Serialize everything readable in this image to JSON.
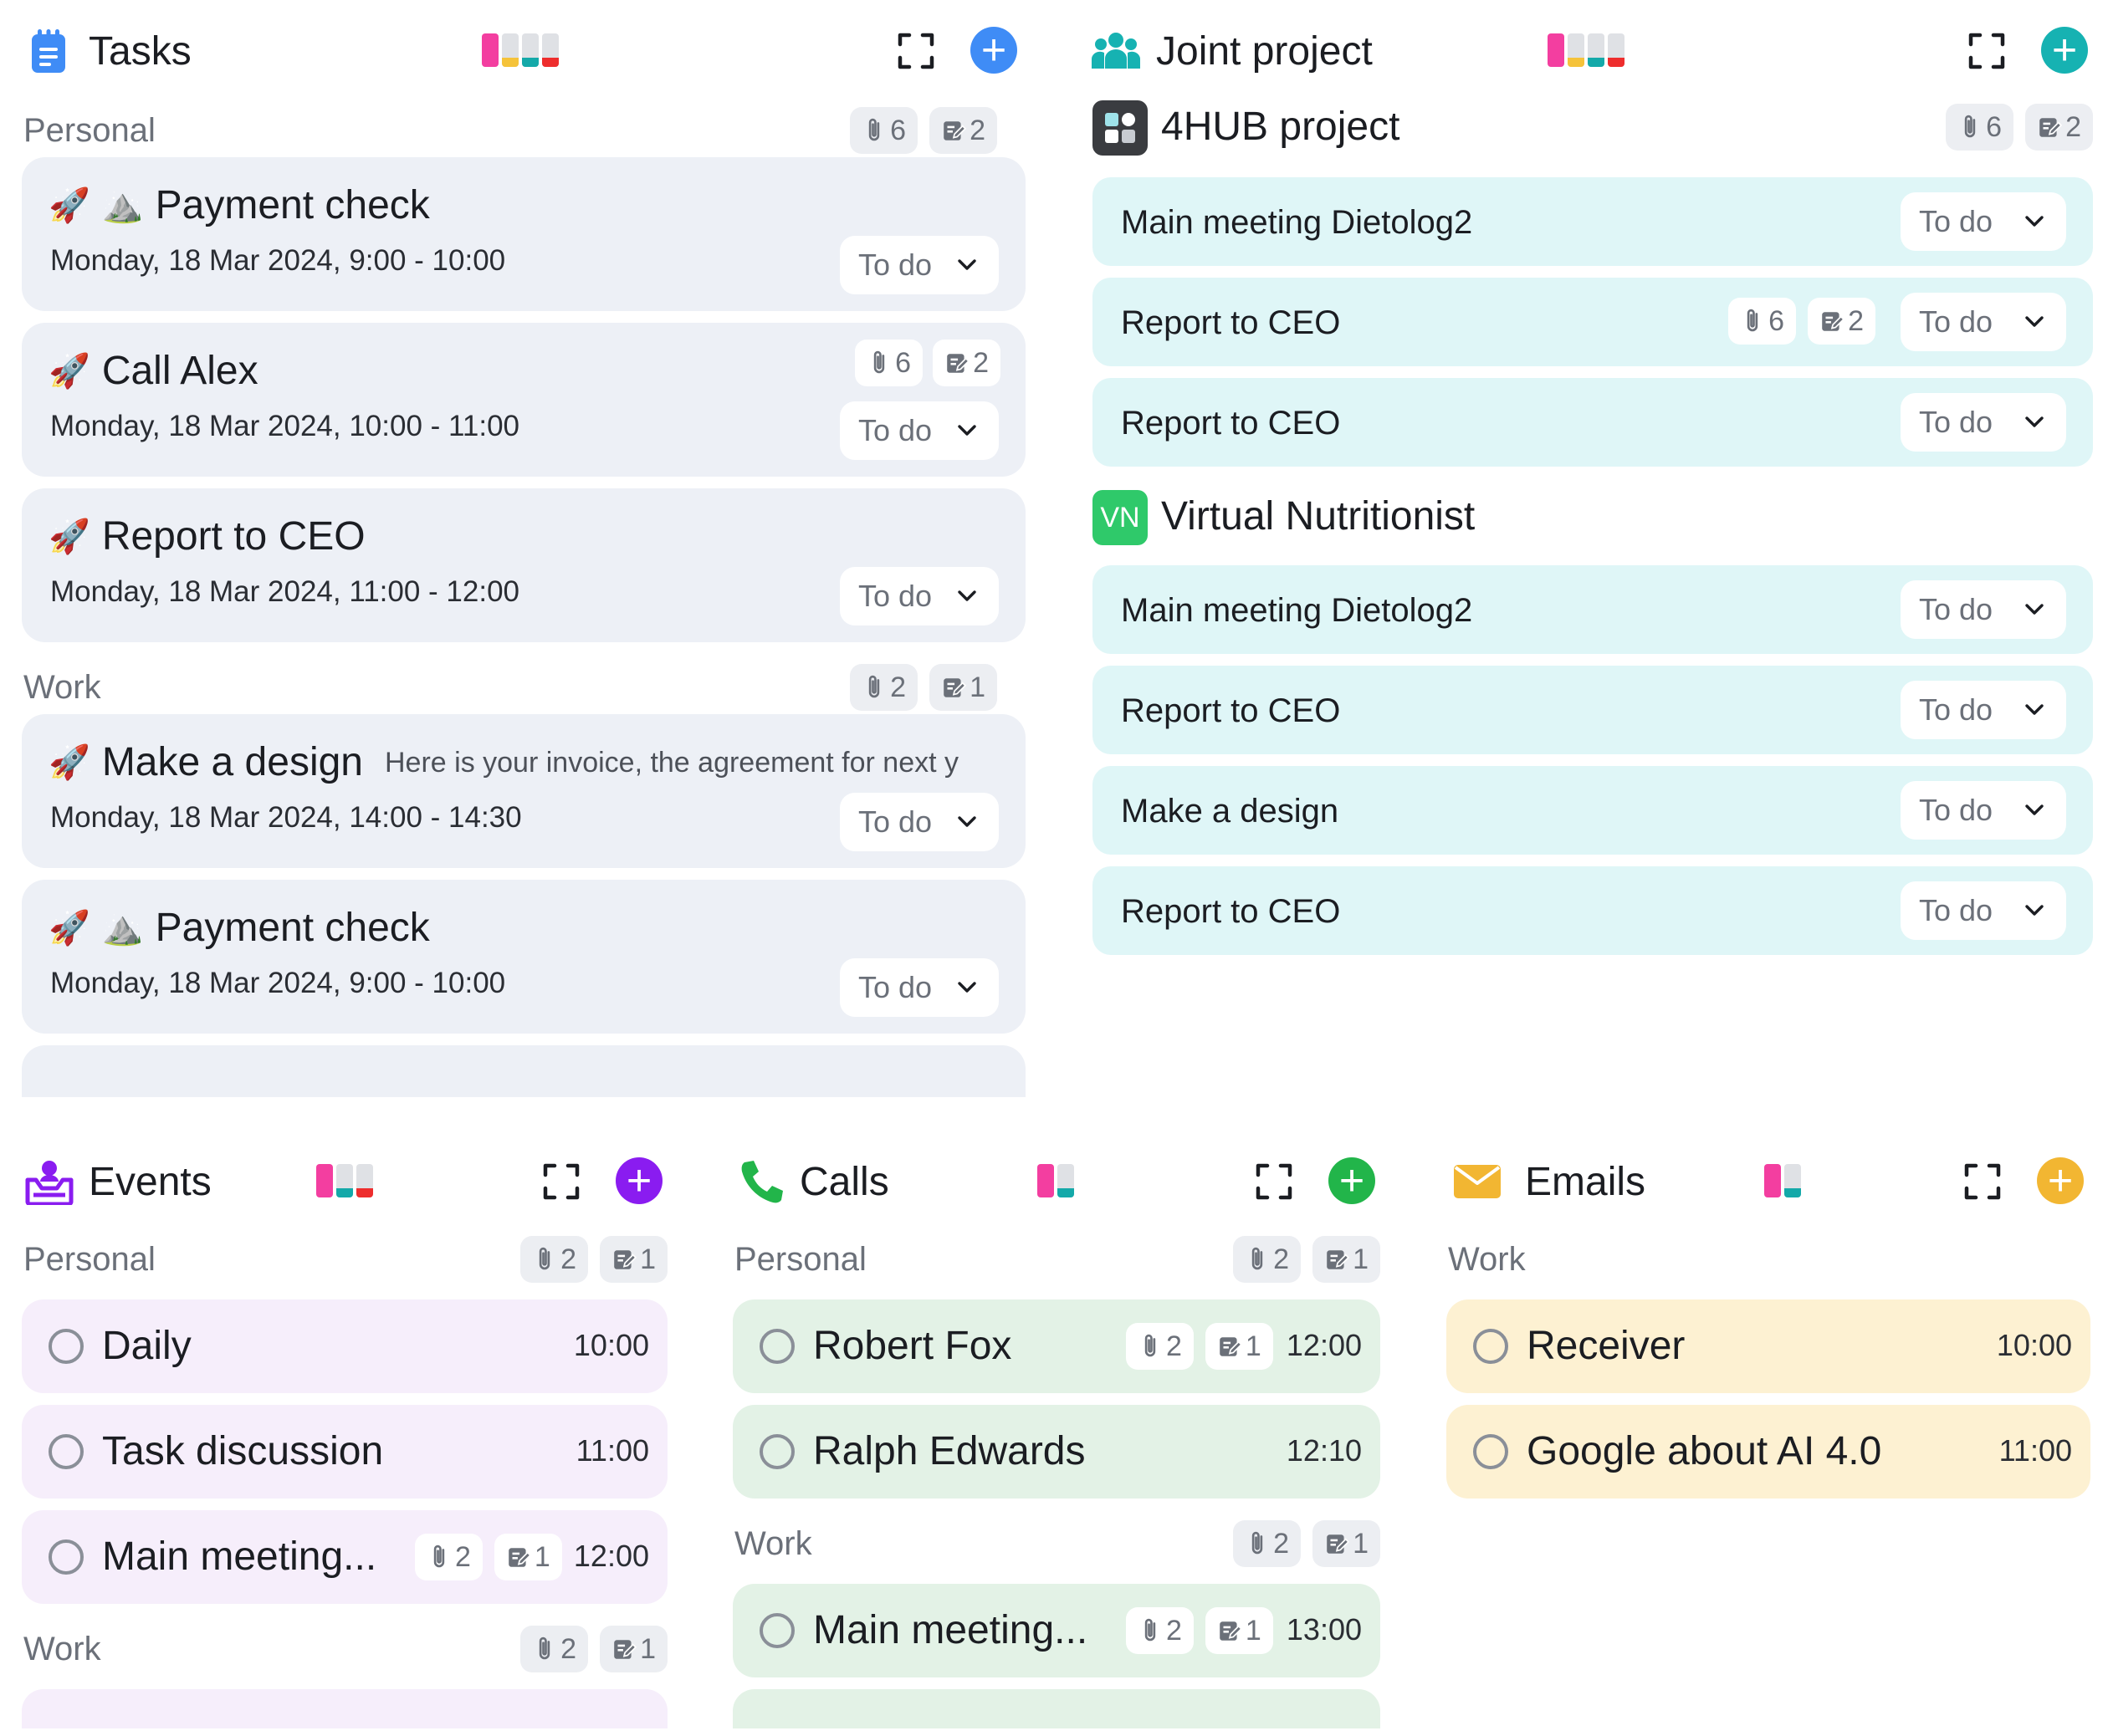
{
  "colors": {
    "tasks_accent": "#3f8cf6",
    "joint_accent": "#16b2b2",
    "events_accent": "#8a1cf0",
    "calls_accent": "#22b54a",
    "emails_accent": "#f2b632",
    "bar_pink": "#f33ea0",
    "bar_yellow": "#f5c33a",
    "bar_teal": "#14a9a9",
    "bar_red": "#ee2d2d",
    "task_card_bg": "#edf0f6",
    "joint_card_bg": "#dff6f7",
    "event_card_bg": "#f6eefb",
    "call_card_bg": "#e3f2e6",
    "email_card_bg": "#fdf1d2",
    "vn_green": "#2fc96a"
  },
  "tasks": {
    "title": "Tasks",
    "icon": "notepad-icon",
    "sections": [
      {
        "label": "Personal",
        "attachments": "6",
        "notes": "2",
        "cards": [
          {
            "emoji": "🚀",
            "emoji2": "⛰️",
            "title": "Payment check",
            "datetime": "Monday, 18 Mar 2024, 9:00 - 10:00",
            "status": "To do"
          },
          {
            "emoji": "🚀",
            "title": "Call Alex",
            "datetime": "Monday, 18 Mar 2024, 10:00 - 11:00",
            "status": "To do",
            "attachments": "6",
            "notes": "2"
          },
          {
            "emoji": "🚀",
            "title": "Report to CEO",
            "datetime": "Monday, 18 Mar 2024, 11:00 - 12:00",
            "status": "To do"
          }
        ]
      },
      {
        "label": "Work",
        "attachments": "2",
        "notes": "1",
        "cards": [
          {
            "emoji": "🚀",
            "title": "Make a design",
            "description": "Here is your invoice, the agreement for next y",
            "datetime": "Monday, 18 Mar 2024, 14:00 - 14:30",
            "status": "To do"
          },
          {
            "emoji": "🚀",
            "emoji2": "⛰️",
            "title": "Payment check",
            "datetime": "Monday, 18 Mar 2024, 9:00 - 10:00",
            "status": "To do"
          }
        ]
      }
    ]
  },
  "joint": {
    "title": "Joint project",
    "icon": "team-icon",
    "groups": [
      {
        "title": "4HUB project",
        "icon": "4hub-logo-icon",
        "attachments": "6",
        "notes": "2",
        "items": [
          {
            "title": "Main meeting Dietolog2",
            "status": "To do"
          },
          {
            "title": "Report to CEO",
            "status": "To do",
            "attachments": "6",
            "notes": "2"
          },
          {
            "title": "Report to CEO",
            "status": "To do"
          }
        ]
      },
      {
        "title": "Virtual Nutritionist",
        "icon_text": "VN",
        "items": [
          {
            "title": "Main meeting Dietolog2",
            "status": "To do"
          },
          {
            "title": "Report to CEO",
            "status": "To do"
          },
          {
            "title": "Make a design",
            "status": "To do"
          },
          {
            "title": "Report to CEO",
            "status": "To do"
          }
        ]
      }
    ]
  },
  "events": {
    "title": "Events",
    "icon": "calendar-person-icon",
    "sections": [
      {
        "label": "Personal",
        "attachments": "2",
        "notes": "1",
        "items": [
          {
            "title": "Daily",
            "time": "10:00"
          },
          {
            "title": "Task discussion",
            "time": "11:00"
          },
          {
            "title": "Main meeting...",
            "time": "12:00",
            "attachments": "2",
            "notes": "1"
          }
        ]
      },
      {
        "label": "Work",
        "attachments": "2",
        "notes": "1"
      }
    ]
  },
  "calls": {
    "title": "Calls",
    "icon": "phone-icon",
    "sections": [
      {
        "label": "Personal",
        "attachments": "2",
        "notes": "1",
        "items": [
          {
            "title": "Robert Fox",
            "time": "12:00",
            "attachments": "2",
            "notes": "1"
          },
          {
            "title": "Ralph Edwards",
            "time": "12:10"
          }
        ]
      },
      {
        "label": "Work",
        "attachments": "2",
        "notes": "1",
        "items": [
          {
            "title": "Main meeting...",
            "time": "13:00",
            "attachments": "2",
            "notes": "1"
          }
        ]
      }
    ]
  },
  "emails": {
    "title": "Emails",
    "icon": "envelope-icon",
    "sections": [
      {
        "label": "Work",
        "items": [
          {
            "title": "Receiver",
            "time": "10:00"
          },
          {
            "title": "Google about AI 4.0",
            "time": "11:00"
          }
        ]
      }
    ]
  }
}
